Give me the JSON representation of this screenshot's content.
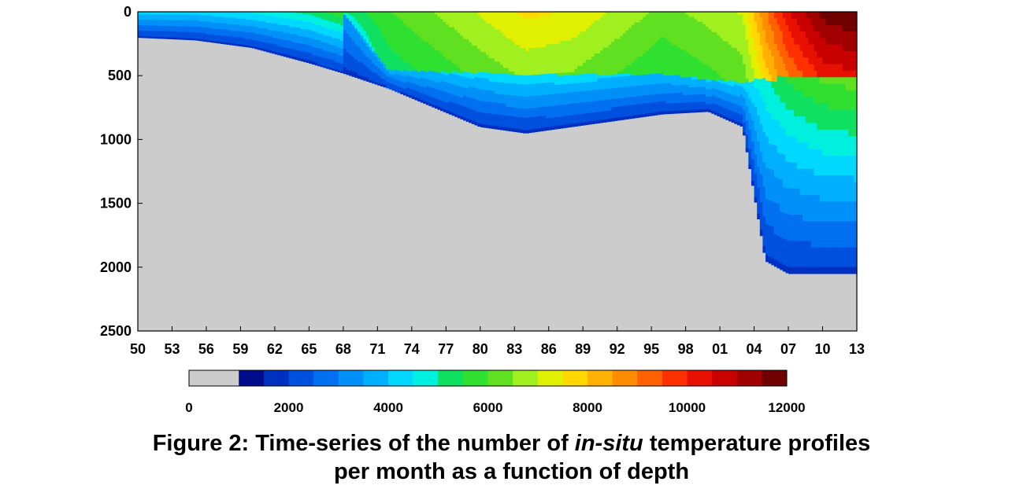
{
  "chart_data": {
    "type": "heatmap",
    "title": "",
    "xlabel": "",
    "ylabel": "",
    "x_tick_labels": [
      "50",
      "53",
      "56",
      "59",
      "62",
      "65",
      "68",
      "71",
      "74",
      "77",
      "80",
      "83",
      "86",
      "89",
      "92",
      "95",
      "98",
      "01",
      "04",
      "07",
      "10",
      "13"
    ],
    "x_range": [
      1950,
      2013
    ],
    "y_tick_labels": [
      "0",
      "500",
      "1000",
      "1500",
      "2000",
      "2500"
    ],
    "ylim": [
      0,
      2500
    ],
    "y_reversed": true,
    "colorbar": {
      "range": [
        0,
        12000
      ],
      "tick_labels": [
        "0",
        "2000",
        "4000",
        "6000",
        "8000",
        "10000",
        "12000"
      ],
      "colors": [
        "#cccccc",
        "#000c8c",
        "#0030c0",
        "#0050e0",
        "#0070f0",
        "#0090f8",
        "#00b0ff",
        "#00d8ff",
        "#00f0e0",
        "#10e060",
        "#30e030",
        "#60e020",
        "#a0f020",
        "#e0f000",
        "#ffd800",
        "#ffb000",
        "#ff8c00",
        "#ff6000",
        "#ff3000",
        "#e81000",
        "#c80000",
        "#a00000",
        "#700000"
      ]
    },
    "profiles": [
      {
        "year": 1950,
        "shallow_depth": 0,
        "deep_depth": 200,
        "peak_count": 2600
      },
      {
        "year": 1955,
        "shallow_depth": 0,
        "deep_depth": 220,
        "peak_count": 2600
      },
      {
        "year": 1960,
        "shallow_depth": 0,
        "deep_depth": 280,
        "peak_count": 3000
      },
      {
        "year": 1965,
        "shallow_depth": 0,
        "deep_depth": 400,
        "peak_count": 3600
      },
      {
        "year": 1968,
        "shallow_depth": 0,
        "deep_depth": 480,
        "peak_count": 4400
      },
      {
        "year": 1972,
        "shallow_depth": 450,
        "deep_depth": 600,
        "peak_count": 5400
      },
      {
        "year": 1976,
        "shallow_depth": 460,
        "deep_depth": 750,
        "peak_count": 6000
      },
      {
        "year": 1980,
        "shallow_depth": 470,
        "deep_depth": 900,
        "peak_count": 6600
      },
      {
        "year": 1984,
        "shallow_depth": 480,
        "deep_depth": 950,
        "peak_count": 7200
      },
      {
        "year": 1988,
        "shallow_depth": 480,
        "deep_depth": 900,
        "peak_count": 7000
      },
      {
        "year": 1992,
        "shallow_depth": 480,
        "deep_depth": 850,
        "peak_count": 6400
      },
      {
        "year": 1996,
        "shallow_depth": 480,
        "deep_depth": 800,
        "peak_count": 5800
      },
      {
        "year": 2000,
        "shallow_depth": 520,
        "deep_depth": 780,
        "peak_count": 6200
      },
      {
        "year": 2003,
        "shallow_depth": 540,
        "deep_depth": 900,
        "peak_count": 6600
      },
      {
        "year": 2005,
        "shallow_depth": 500,
        "deep_depth": 1950,
        "peak_count": 8600
      },
      {
        "year": 2007,
        "shallow_depth": 500,
        "deep_depth": 2050,
        "peak_count": 10200
      },
      {
        "year": 2010,
        "shallow_depth": 500,
        "deep_depth": 2050,
        "peak_count": 11600
      },
      {
        "year": 2013,
        "shallow_depth": 500,
        "deep_depth": 2050,
        "peak_count": 12000
      }
    ]
  },
  "caption": {
    "line1_prefix": "Figure 2: Time-series of the number of ",
    "line1_italic": "in-situ",
    "line1_suffix": " temperature profiles",
    "line2": "per month as a function of depth"
  }
}
